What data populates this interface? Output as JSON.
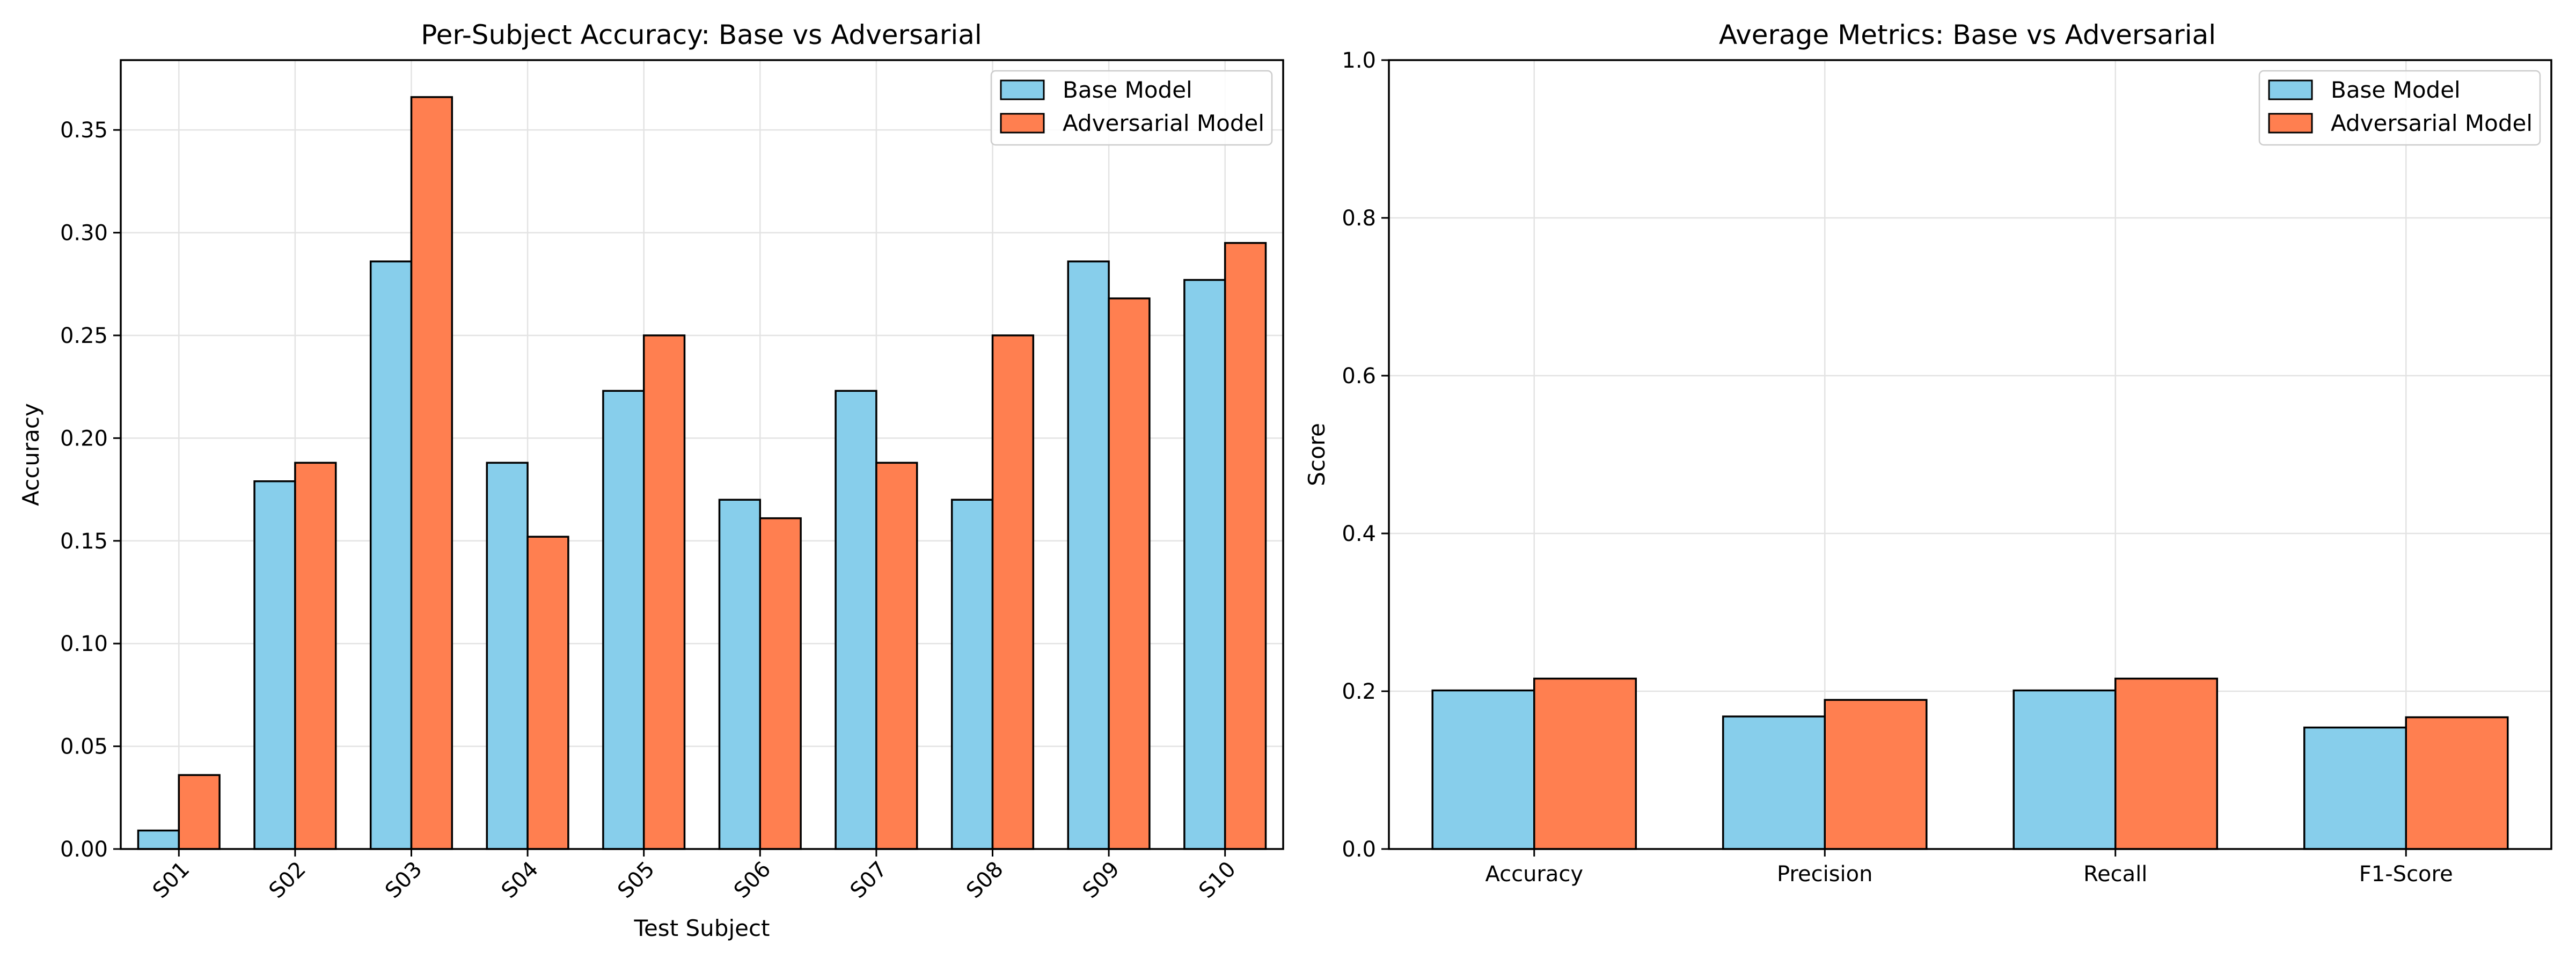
{
  "colors": {
    "base": "#87ceeb",
    "adversarial": "#ff7f50"
  },
  "chart_data": [
    {
      "type": "bar",
      "title": "Per-Subject Accuracy: Base vs Adversarial",
      "xlabel": "Test Subject",
      "ylabel": "Accuracy",
      "categories": [
        "S01",
        "S02",
        "S03",
        "S04",
        "S05",
        "S06",
        "S07",
        "S08",
        "S09",
        "S10"
      ],
      "series": [
        {
          "name": "Base Model",
          "values": [
            0.009,
            0.179,
            0.286,
            0.188,
            0.223,
            0.17,
            0.223,
            0.17,
            0.286,
            0.277
          ]
        },
        {
          "name": "Adversarial Model",
          "values": [
            0.036,
            0.188,
            0.366,
            0.152,
            0.25,
            0.161,
            0.188,
            0.25,
            0.268,
            0.295
          ]
        }
      ],
      "ylim": [
        0,
        0.384
      ],
      "yticks": [
        0.0,
        0.05,
        0.1,
        0.15,
        0.2,
        0.25,
        0.3,
        0.35
      ],
      "ytick_labels": [
        "0.00",
        "0.05",
        "0.10",
        "0.15",
        "0.20",
        "0.25",
        "0.30",
        "0.35"
      ],
      "xtick_rotation": 45,
      "grid": true,
      "legend": "top-right"
    },
    {
      "type": "bar",
      "title": "Average Metrics: Base vs Adversarial",
      "xlabel": "",
      "ylabel": "Score",
      "categories": [
        "Accuracy",
        "Precision",
        "Recall",
        "F1-Score"
      ],
      "series": [
        {
          "name": "Base Model",
          "values": [
            0.201,
            0.168,
            0.201,
            0.154
          ]
        },
        {
          "name": "Adversarial Model",
          "values": [
            0.216,
            0.189,
            0.216,
            0.167
          ]
        }
      ],
      "ylim": [
        0,
        1.0
      ],
      "yticks": [
        0.0,
        0.2,
        0.4,
        0.6,
        0.8,
        1.0
      ],
      "ytick_labels": [
        "0.0",
        "0.2",
        "0.4",
        "0.6",
        "0.8",
        "1.0"
      ],
      "xtick_rotation": 0,
      "grid": true,
      "legend": "top-right"
    }
  ]
}
